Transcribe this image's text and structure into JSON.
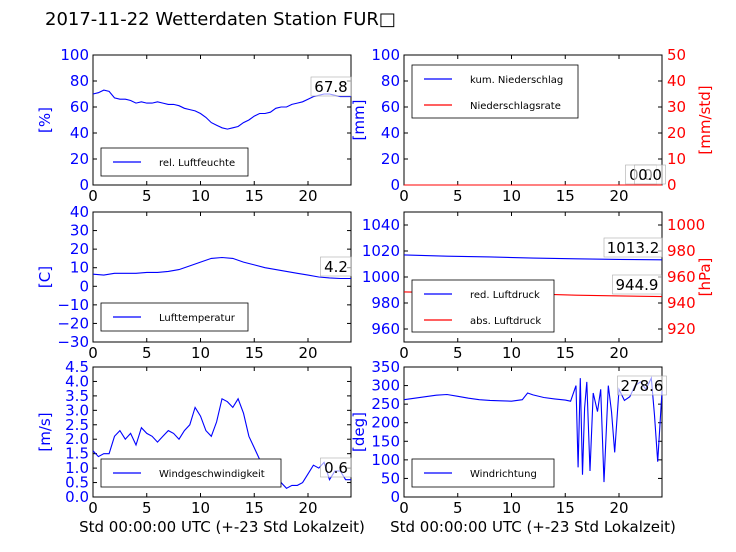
{
  "title": "2017-11-22 Wetterdaten Station FUR□",
  "colors": {
    "blue": "#0000ff",
    "red": "#ff0000",
    "grid": "#000000"
  },
  "chart_data": [
    {
      "id": "humidity",
      "type": "line",
      "ylabel": "[%]",
      "ylim": [
        0,
        100
      ],
      "yticks": [
        "0",
        "20",
        "40",
        "60",
        "80",
        "100"
      ],
      "xlim": [
        0,
        24
      ],
      "xticks": [
        "0",
        "5",
        "10",
        "15",
        "20"
      ],
      "xlabel": "",
      "annotation": "67.8",
      "series": [
        {
          "name": "rel. Luftfeuchte",
          "color": "#0000ff",
          "x": [
            0,
            0.5,
            1,
            1.5,
            2,
            2.5,
            3,
            3.5,
            4,
            4.5,
            5,
            5.5,
            6,
            6.5,
            7,
            7.5,
            8,
            8.5,
            9,
            9.5,
            10,
            10.5,
            11,
            11.5,
            12,
            12.5,
            13,
            13.5,
            14,
            14.5,
            15,
            15.5,
            16,
            16.5,
            17,
            17.5,
            18,
            18.5,
            19,
            19.5,
            20,
            20.5,
            21,
            21.5,
            22,
            22.5,
            23,
            23.5,
            24
          ],
          "y": [
            70,
            71,
            73,
            72,
            67,
            66,
            66,
            65,
            63,
            64,
            63,
            63,
            64,
            63,
            62,
            62,
            61,
            59,
            58,
            57,
            55,
            52,
            48,
            46,
            44,
            43,
            44,
            45,
            48,
            50,
            53,
            55,
            55,
            56,
            59,
            60,
            60,
            62,
            63,
            64,
            66,
            68,
            69,
            70,
            70,
            69,
            68,
            68,
            68
          ]
        }
      ]
    },
    {
      "id": "precipitation",
      "type": "line",
      "ylabel": "[mm]",
      "ylim": [
        0,
        100
      ],
      "yticks": [
        "0",
        "20",
        "40",
        "60",
        "80",
        "100"
      ],
      "ylabel_right": "[mm/std]",
      "ylim_right": [
        0,
        50
      ],
      "yticks_right": [
        "0",
        "10",
        "20",
        "30",
        "40",
        "50"
      ],
      "xlim": [
        0,
        24
      ],
      "xticks": [
        "0",
        "5",
        "10",
        "15",
        "20"
      ],
      "xlabel": "",
      "annotation": "0.0",
      "annotation_right": "0.0",
      "series": [
        {
          "name": "kum. Niederschlag",
          "color": "#0000ff",
          "axis": "left",
          "x": [
            0,
            24
          ],
          "y": [
            0,
            0
          ]
        },
        {
          "name": "Niederschlagsrate",
          "color": "#ff0000",
          "axis": "right",
          "x": [
            0,
            24
          ],
          "y": [
            0,
            0
          ]
        }
      ]
    },
    {
      "id": "temperature",
      "type": "line",
      "ylabel": "[C]",
      "ylim": [
        -30,
        40
      ],
      "yticks": [
        "−30",
        "−20",
        "−10",
        "0",
        "10",
        "20",
        "30",
        "40"
      ],
      "xlim": [
        0,
        24
      ],
      "xticks": [
        "0",
        "5",
        "10",
        "15",
        "20"
      ],
      "xlabel": "",
      "annotation": "4.2",
      "series": [
        {
          "name": "Lufttemperatur",
          "color": "#0000ff",
          "x": [
            0,
            1,
            2,
            3,
            4,
            5,
            6,
            7,
            8,
            9,
            10,
            11,
            12,
            13,
            14,
            15,
            16,
            17,
            18,
            19,
            20,
            21,
            22,
            23,
            24
          ],
          "y": [
            6.5,
            6,
            7,
            7,
            7,
            7.5,
            7.5,
            8,
            9,
            11,
            13,
            15,
            15.5,
            15,
            13,
            11.5,
            10,
            9,
            8,
            7,
            6,
            5,
            4.5,
            4.2,
            4.2
          ]
        }
      ]
    },
    {
      "id": "pressure",
      "type": "line",
      "ylabel": "",
      "ylim": [
        950,
        1050
      ],
      "yticks": [
        "960",
        "980",
        "1000",
        "1020",
        "1040"
      ],
      "ylabel_right": "[hPa]",
      "ylim_right": [
        910,
        1010
      ],
      "yticks_right": [
        "920",
        "940",
        "960",
        "980",
        "1000"
      ],
      "xlim": [
        0,
        24
      ],
      "xticks": [
        "0",
        "5",
        "10",
        "15",
        "20"
      ],
      "xlabel": "",
      "annotation": "1013.2",
      "annotation_right": "944.9",
      "series": [
        {
          "name": "red. Luftdruck",
          "color": "#0000ff",
          "axis": "left",
          "x": [
            0,
            4,
            8,
            12,
            16,
            20,
            24
          ],
          "y": [
            1017,
            1016,
            1015.5,
            1014.5,
            1014,
            1013.5,
            1013.2
          ]
        },
        {
          "name": "abs. Luftdruck",
          "color": "#ff0000",
          "axis": "right",
          "x": [
            0,
            4,
            8,
            12,
            16,
            20,
            24
          ],
          "y": [
            948.5,
            948,
            947.5,
            947,
            946,
            945.5,
            944.9
          ]
        }
      ]
    },
    {
      "id": "wind_speed",
      "type": "line",
      "ylabel": "[m/s]",
      "ylim": [
        0,
        4.5
      ],
      "yticks": [
        "0.0",
        "0.5",
        "1.0",
        "1.5",
        "2.0",
        "2.5",
        "3.0",
        "3.5",
        "4.0",
        "4.5"
      ],
      "xlim": [
        0,
        24
      ],
      "xticks": [
        "0",
        "5",
        "10",
        "15",
        "20"
      ],
      "xlabel": "Std 00:00:00 UTC (+-23 Std Lokalzeit)",
      "annotation": "0.6",
      "series": [
        {
          "name": "Windgeschwindigkeit",
          "color": "#0000ff",
          "x": [
            0,
            0.5,
            1,
            1.5,
            2,
            2.5,
            3,
            3.5,
            4,
            4.5,
            5,
            5.5,
            6,
            6.5,
            7,
            7.5,
            8,
            8.5,
            9,
            9.5,
            10,
            10.5,
            11,
            11.5,
            12,
            12.5,
            13,
            13.5,
            14,
            14.5,
            15,
            15.5,
            16,
            16.5,
            17,
            17.5,
            18,
            18.5,
            19,
            19.5,
            20,
            20.5,
            21,
            21.5,
            22,
            22.5,
            23,
            23.5,
            24
          ],
          "y": [
            1.6,
            1.4,
            1.5,
            1.5,
            2.1,
            2.3,
            2,
            2.2,
            1.8,
            2.4,
            2.2,
            2.1,
            1.9,
            2.1,
            2.3,
            2.2,
            2,
            2.3,
            2.5,
            3.1,
            2.8,
            2.3,
            2.1,
            2.6,
            3.4,
            3.3,
            3.1,
            3.4,
            2.9,
            2.1,
            1.7,
            1.3,
            0.9,
            0.8,
            0.6,
            0.5,
            0.3,
            0.4,
            0.4,
            0.5,
            0.8,
            1.1,
            1,
            1.2,
            0.6,
            0.9,
            0.9,
            0.6,
            0.6
          ]
        }
      ]
    },
    {
      "id": "wind_direction",
      "type": "line",
      "ylabel": "[deg]",
      "ylim": [
        0,
        350
      ],
      "yticks": [
        "0",
        "50",
        "100",
        "150",
        "200",
        "250",
        "300",
        "350"
      ],
      "xlim": [
        0,
        24
      ],
      "xticks": [
        "0",
        "5",
        "10",
        "15",
        "20"
      ],
      "xlabel": "Std 00:00:00 UTC (+-23 Std Lokalzeit)",
      "annotation": "278.6",
      "series": [
        {
          "name": "Windrichtung",
          "color": "#0000ff",
          "x": [
            0,
            1,
            2,
            3,
            4,
            5,
            6,
            7,
            8,
            9,
            10,
            11,
            11.5,
            12,
            13,
            14,
            15,
            15.5,
            16,
            16.2,
            16.4,
            16.6,
            16.8,
            17,
            17.3,
            17.6,
            18,
            18.3,
            18.6,
            19,
            19.3,
            19.6,
            20,
            20.5,
            21,
            21.5,
            22,
            22.5,
            23,
            23.3,
            23.6,
            24
          ],
          "y": [
            262,
            266,
            270,
            274,
            276,
            271,
            266,
            262,
            260,
            259,
            258,
            262,
            280,
            275,
            268,
            264,
            261,
            258,
            300,
            80,
            320,
            60,
            240,
            310,
            70,
            280,
            230,
            290,
            40,
            300,
            230,
            120,
            290,
            260,
            270,
            300,
            310,
            290,
            320,
            220,
            95,
            285
          ]
        }
      ]
    }
  ]
}
